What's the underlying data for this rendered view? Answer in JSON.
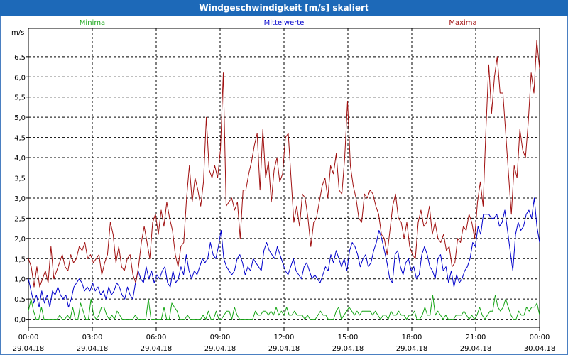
{
  "window": {
    "title": "Windgeschwindigkeit [m/s] skaliert"
  },
  "colors": {
    "minima": "#16a516",
    "mittelwerte": "#0000cc",
    "maxima": "#a01010",
    "titlebar": "#1d69b8"
  },
  "chart_data": {
    "type": "line",
    "title": "Windgeschwindigkeit [m/s] skaliert",
    "ylabel": "m/s",
    "ylim": [
      -0.2,
      7.2
    ],
    "xlim_hours": [
      0,
      24
    ],
    "grid": true,
    "y_ticks": [
      "0,0",
      "0,5",
      "1,0",
      "1,5",
      "2,0",
      "2,5",
      "3,0",
      "3,5",
      "4,0",
      "4,5",
      "5,0",
      "5,5",
      "6,0",
      "6,5"
    ],
    "x_ticks": [
      {
        "time": "00:00",
        "date": "29.04.18"
      },
      {
        "time": "03:00",
        "date": "29.04.18"
      },
      {
        "time": "06:00",
        "date": "29.04.18"
      },
      {
        "time": "09:00",
        "date": "29.04.18"
      },
      {
        "time": "12:00",
        "date": "29.04.18"
      },
      {
        "time": "15:00",
        "date": "29.04.18"
      },
      {
        "time": "18:00",
        "date": "29.04.18"
      },
      {
        "time": "21:00",
        "date": "29.04.18"
      },
      {
        "time": "00:00",
        "date": "30.04.18"
      }
    ],
    "sample_interval_minutes": 10,
    "series": [
      {
        "name": "Minima",
        "legend_position": "left",
        "values": [
          0.2,
          0.5,
          0.2,
          0,
          0,
          0.3,
          0,
          0,
          0,
          0,
          0,
          0,
          0.1,
          0,
          0,
          0.1,
          0,
          0.3,
          0,
          0,
          0.4,
          0.2,
          0,
          0,
          0.5,
          0.1,
          0,
          0.1,
          0.3,
          0.3,
          0.1,
          0,
          0.1,
          0,
          0.2,
          0.1,
          0,
          0,
          0,
          0,
          0,
          0.1,
          0,
          0,
          0,
          0,
          0.5,
          0,
          0,
          0,
          0,
          0,
          0.3,
          0,
          0,
          0.4,
          0.3,
          0.2,
          0,
          0,
          0,
          0.1,
          0,
          0,
          0,
          0,
          0,
          0.1,
          0,
          0.2,
          0,
          0,
          0.2,
          0,
          0,
          0.1,
          0.2,
          0.2,
          0,
          0.3,
          0.1,
          0,
          0,
          0,
          0,
          0,
          0,
          0.2,
          0.1,
          0.1,
          0.2,
          0.2,
          0.1,
          0.2,
          0.1,
          0.3,
          0.1,
          0.2,
          0.1,
          0.3,
          0.1,
          0.1,
          0.2,
          0.1,
          0.1,
          0.1,
          0,
          0.1,
          0,
          0,
          0,
          0.1,
          0.2,
          0.1,
          0.1,
          0,
          0,
          0,
          0.2,
          0.3,
          0,
          0.1,
          0.2,
          0.3,
          0.2,
          0.1,
          0.2,
          0.1,
          0.2,
          0.2,
          0.2,
          0.2,
          0.1,
          0.2,
          0.1,
          0,
          0.1,
          0.1,
          0,
          0.2,
          0.1,
          0.1,
          0.2,
          0.1,
          0.1,
          0,
          0.1,
          0.1,
          0.2,
          0,
          0,
          0.1,
          0.3,
          0.1,
          0.1,
          0.6,
          0.1,
          0.2,
          0.1,
          0,
          0.1,
          0,
          0,
          0,
          0.1,
          0.1,
          0.1,
          0.2,
          0.1,
          0,
          0.1,
          0,
          0.1,
          0.3,
          0.1,
          0,
          0.1,
          0.2,
          0.2,
          0.6,
          0.3,
          0.2,
          0.3,
          0.5,
          0.3,
          0.1,
          0,
          0,
          0.2,
          0.1,
          0.1,
          0.3,
          0.2,
          0.3,
          0.3,
          0.4,
          0.1
        ]
      },
      {
        "name": "Mittelwerte",
        "legend_position": "center",
        "values": [
          1.0,
          0.7,
          0.4,
          0.6,
          0.3,
          0.7,
          0.4,
          0.6,
          0.3,
          0.7,
          0.6,
          0.8,
          0.6,
          0.5,
          0.6,
          0.3,
          0.5,
          0.8,
          0.9,
          1.0,
          0.9,
          0.7,
          0.8,
          0.7,
          0.9,
          0.7,
          0.8,
          0.6,
          0.7,
          0.5,
          0.8,
          0.6,
          0.7,
          0.9,
          0.8,
          0.6,
          0.5,
          0.8,
          0.6,
          0.5,
          0.9,
          1.2,
          1.0,
          0.9,
          1.3,
          1.0,
          1.2,
          0.9,
          1.1,
          1.0,
          1.2,
          1.3,
          0.9,
          0.8,
          1.2,
          0.9,
          1.0,
          1.3,
          1.1,
          1.6,
          1.2,
          1.0,
          1.2,
          1.1,
          1.3,
          1.5,
          1.4,
          1.5,
          1.9,
          1.6,
          1.5,
          1.8,
          2.2,
          1.5,
          1.3,
          1.2,
          1.1,
          1.2,
          1.5,
          1.6,
          1.4,
          1.1,
          1.3,
          1.2,
          1.5,
          1.4,
          1.3,
          1.2,
          1.7,
          1.9,
          1.7,
          1.6,
          1.5,
          1.8,
          1.6,
          1.4,
          1.2,
          1.1,
          1.3,
          1.5,
          1.2,
          1.1,
          1.0,
          1.3,
          1.4,
          1.2,
          1.0,
          1.1,
          1.0,
          0.9,
          1.1,
          1.3,
          1.2,
          1.6,
          1.4,
          1.7,
          1.5,
          1.3,
          1.5,
          1.2,
          1.7,
          1.9,
          1.8,
          1.6,
          1.3,
          1.5,
          1.6,
          1.3,
          1.4,
          1.7,
          1.9,
          2.2,
          2.0,
          1.7,
          1.4,
          1.0,
          0.9,
          1.6,
          1.7,
          1.3,
          1.1,
          1.4,
          1.5,
          1.2,
          1.3,
          1.0,
          1.1,
          1.6,
          1.8,
          1.6,
          1.3,
          1.2,
          1.0,
          1.5,
          1.6,
          1.2,
          1.3,
          0.9,
          1.2,
          0.8,
          1.1,
          0.9,
          1.0,
          1.2,
          1.3,
          1.5,
          1.9,
          1.8,
          2.3,
          2.1,
          2.6,
          2.6,
          2.6,
          2.5,
          2.5,
          2.6,
          2.3,
          2.4,
          2.7,
          2.2,
          1.7,
          1.2,
          2.1,
          2.4,
          2.2,
          2.3,
          2.6,
          2.7,
          2.5,
          3.0,
          2.3,
          1.9
        ]
      },
      {
        "name": "Maxima",
        "legend_position": "right",
        "values": [
          1.5,
          1.3,
          0.8,
          1.3,
          0.8,
          1.0,
          1.2,
          0.9,
          1.8,
          1.0,
          1.2,
          1.4,
          1.6,
          1.3,
          1.2,
          1.6,
          1.4,
          1.5,
          1.8,
          1.7,
          1.9,
          1.5,
          1.6,
          1.4,
          1.5,
          1.6,
          1.1,
          1.4,
          1.6,
          2.4,
          2.1,
          1.4,
          1.8,
          1.3,
          1.2,
          1.5,
          1.6,
          1.1,
          0.9,
          1.3,
          1.9,
          2.3,
          1.9,
          1.5,
          2.4,
          2.6,
          2.1,
          2.7,
          2.3,
          2.9,
          2.5,
          2.2,
          1.6,
          1.3,
          1.8,
          1.9,
          3.0,
          3.8,
          2.9,
          3.5,
          3.2,
          2.8,
          3.4,
          5.0,
          3.7,
          3.5,
          3.8,
          3.5,
          4.2,
          6.1,
          2.8,
          2.9,
          3.0,
          2.7,
          2.9,
          2.0,
          3.2,
          3.2,
          3.6,
          3.9,
          4.3,
          4.6,
          3.2,
          4.7,
          3.5,
          3.9,
          2.9,
          3.7,
          4.0,
          3.4,
          3.6,
          4.5,
          4.6,
          3.5,
          2.4,
          2.8,
          2.3,
          3.1,
          3.0,
          2.5,
          1.8,
          2.4,
          2.5,
          2.9,
          3.3,
          3.5,
          3.0,
          3.8,
          3.6,
          4.1,
          3.2,
          3.1,
          4.0,
          5.4,
          3.8,
          3.3,
          3.0,
          2.5,
          2.4,
          3.1,
          3.0,
          3.2,
          3.1,
          2.8,
          2.6,
          2.1,
          2.0,
          1.6,
          2.2,
          2.8,
          3.1,
          2.5,
          2.4,
          2.0,
          2.4,
          1.8,
          1.6,
          1.5,
          2.4,
          2.7,
          2.3,
          2.4,
          2.8,
          2.1,
          2.4,
          2.0,
          1.9,
          2.1,
          1.7,
          1.8,
          1.3,
          1.4,
          2.0,
          1.9,
          2.3,
          2.2,
          2.6,
          2.4,
          2.0,
          2.9,
          3.4,
          2.8,
          4.7,
          6.3,
          5.1,
          6.0,
          6.5,
          5.6,
          5.6,
          4.6,
          3.6,
          2.6,
          3.8,
          3.5,
          4.7,
          4.2,
          4.0,
          4.9,
          6.1,
          5.6,
          6.9,
          6.2
        ]
      }
    ]
  }
}
